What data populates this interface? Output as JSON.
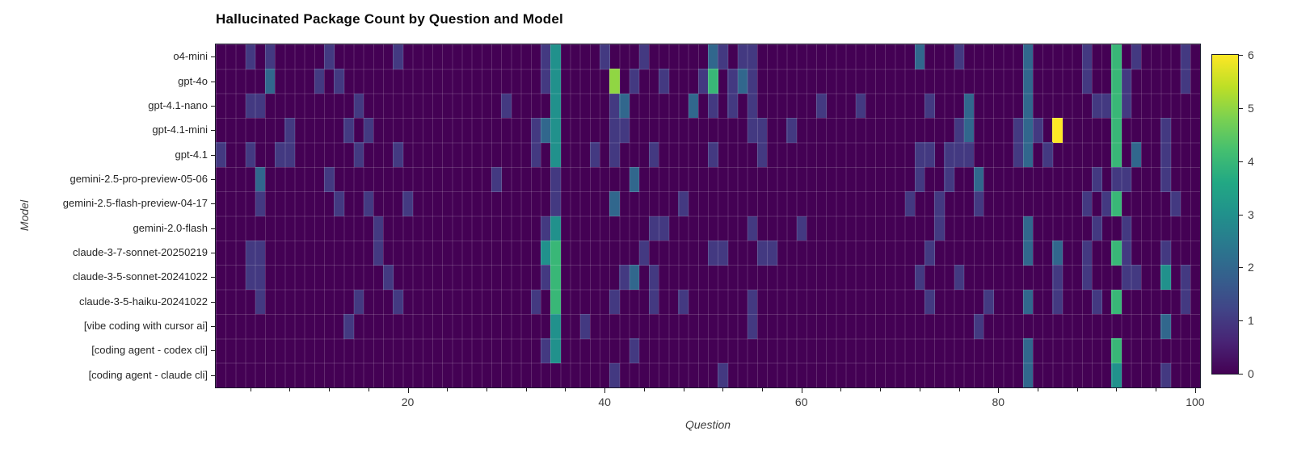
{
  "title": "Hallucinated Package Count by Question and Model",
  "x_axis": {
    "label": "Question",
    "major_ticks": [
      20,
      40,
      60,
      80,
      100
    ],
    "minor_tick_step": 4,
    "range": [
      1,
      100
    ]
  },
  "y_axis": {
    "label": "Model"
  },
  "colorbar": {
    "min": 0,
    "max": 6,
    "ticks": [
      0,
      1,
      2,
      3,
      4,
      5,
      6
    ],
    "colormap": "viridis"
  },
  "colors": {
    "background": "#ffffff",
    "cell_zero": "#440154",
    "cell_max": "#fde725",
    "gridline": "rgba(255,255,255,0.16)",
    "spine": "#1c1c2e"
  },
  "chart_data": {
    "type": "heatmap",
    "title": "Hallucinated Package Count by Question and Model",
    "xlabel": "Question",
    "ylabel": "Model",
    "x_range": [
      1,
      100
    ],
    "vmin": 0,
    "vmax": 6,
    "colormap": "viridis",
    "legend_position": "right-colorbar",
    "grid": true,
    "models": [
      "o4-mini",
      "gpt-4o",
      "gpt-4.1-nano",
      "gpt-4.1-mini",
      "gpt-4.1",
      "gemini-2.5-pro-preview-05-06",
      "gemini-2.5-flash-preview-04-17",
      "gemini-2.0-flash",
      "claude-3-7-sonnet-20250219",
      "claude-3-5-sonnet-20241022",
      "claude-3-5-haiku-20241022",
      "[vibe coding with cursor ai]",
      "[coding agent - codex cli]",
      "[coding agent - claude cli]"
    ],
    "note": "sparse_cells maps question number (1-100) to hallucinated package count; all unlisted cells are 0",
    "sparse_cells": [
      {
        "4": 1,
        "6": 1,
        "12": 1,
        "19": 1,
        "34": 1,
        "35": 3,
        "40": 1,
        "44": 1,
        "51": 2,
        "52": 1,
        "54": 1,
        "55": 1,
        "72": 2,
        "76": 1,
        "83": 2,
        "89": 1,
        "92": 4,
        "94": 1,
        "99": 1
      },
      {
        "6": 2,
        "11": 1,
        "13": 1,
        "34": 1,
        "35": 3,
        "41": 5,
        "43": 1,
        "46": 1,
        "50": 1,
        "51": 4,
        "53": 1,
        "54": 2,
        "55": 1,
        "83": 2,
        "89": 1,
        "92": 4,
        "93": 1,
        "99": 1
      },
      {
        "4": 1,
        "5": 1,
        "15": 1,
        "30": 1,
        "35": 3,
        "41": 1,
        "42": 2,
        "49": 2,
        "51": 1,
        "53": 1,
        "55": 1,
        "62": 1,
        "66": 1,
        "73": 1,
        "77": 2,
        "83": 2,
        "90": 1,
        "91": 1,
        "92": 4,
        "93": 1
      },
      {
        "8": 1,
        "14": 1,
        "16": 1,
        "33": 1,
        "34": 2,
        "35": 3,
        "41": 1,
        "42": 1,
        "55": 1,
        "56": 1,
        "59": 1,
        "76": 1,
        "77": 2,
        "82": 1,
        "83": 2,
        "84": 1,
        "86": 6,
        "92": 4,
        "97": 1
      },
      {
        "1": 1,
        "4": 1,
        "7": 1,
        "8": 1,
        "15": 1,
        "19": 1,
        "33": 1,
        "35": 3,
        "39": 1,
        "41": 1,
        "45": 1,
        "51": 1,
        "56": 1,
        "72": 1,
        "73": 1,
        "75": 1,
        "76": 1,
        "77": 1,
        "82": 1,
        "83": 2,
        "85": 1,
        "92": 4,
        "94": 2,
        "97": 1
      },
      {
        "5": 2,
        "12": 1,
        "29": 1,
        "35": 1,
        "43": 2,
        "72": 1,
        "75": 1,
        "78": 2,
        "90": 1,
        "92": 1,
        "93": 1,
        "97": 1
      },
      {
        "5": 1,
        "13": 1,
        "16": 1,
        "20": 1,
        "35": 1,
        "41": 2,
        "48": 1,
        "71": 1,
        "74": 1,
        "78": 1,
        "89": 1,
        "91": 1,
        "92": 4,
        "98": 1
      },
      {
        "17": 1,
        "34": 1,
        "35": 3,
        "45": 1,
        "46": 1,
        "55": 1,
        "60": 1,
        "74": 1,
        "83": 2,
        "90": 1,
        "93": 1
      },
      {
        "4": 1,
        "5": 1,
        "17": 1,
        "34": 3,
        "35": 4,
        "44": 1,
        "51": 1,
        "52": 1,
        "56": 1,
        "57": 1,
        "73": 1,
        "83": 2,
        "86": 2,
        "89": 1,
        "92": 4,
        "93": 1,
        "97": 1
      },
      {
        "4": 1,
        "5": 1,
        "18": 1,
        "34": 1,
        "35": 4,
        "42": 1,
        "43": 2,
        "45": 1,
        "72": 1,
        "76": 1,
        "86": 1,
        "89": 1,
        "93": 1,
        "94": 1,
        "97": 3,
        "99": 1
      },
      {
        "5": 1,
        "15": 1,
        "19": 1,
        "33": 1,
        "35": 4,
        "41": 1,
        "45": 1,
        "48": 1,
        "55": 1,
        "73": 1,
        "79": 1,
        "83": 2,
        "86": 1,
        "90": 1,
        "92": 4,
        "99": 1
      },
      {
        "14": 1,
        "35": 3,
        "38": 1,
        "55": 1,
        "78": 1,
        "97": 2
      },
      {
        "34": 1,
        "35": 3,
        "43": 1,
        "83": 2,
        "92": 4
      },
      {
        "41": 1,
        "52": 1,
        "83": 2,
        "92": 3,
        "97": 1
      }
    ]
  }
}
